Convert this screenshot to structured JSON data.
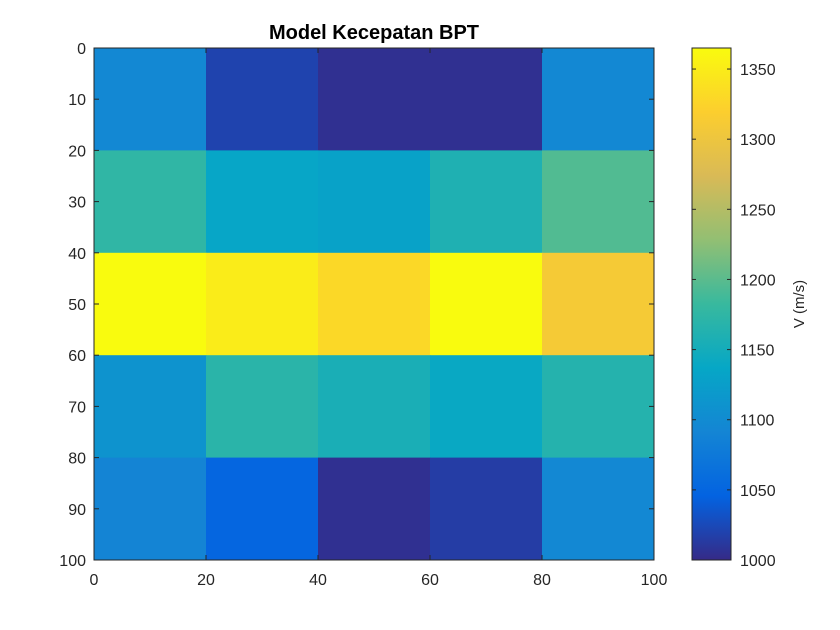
{
  "chart_data": {
    "type": "heatmap",
    "title": "Model Kecepatan BPT",
    "xlabel": "",
    "ylabel": "",
    "x_edges": [
      0,
      20,
      40,
      60,
      80,
      100
    ],
    "y_edges": [
      0,
      20,
      40,
      60,
      80,
      100
    ],
    "xlim": [
      0,
      100
    ],
    "ylim": [
      0,
      100
    ],
    "y_reversed": true,
    "x_ticks": [
      0,
      20,
      40,
      60,
      80,
      100
    ],
    "y_ticks": [
      0,
      10,
      20,
      30,
      40,
      50,
      60,
      70,
      80,
      90,
      100
    ],
    "values": [
      [
        1095,
        1020,
        1005,
        1005,
        1095
      ],
      [
        1175,
        1135,
        1130,
        1160,
        1195
      ],
      [
        1365,
        1350,
        1330,
        1365,
        1310
      ],
      [
        1110,
        1170,
        1155,
        1140,
        1165
      ],
      [
        1090,
        1050,
        1005,
        1015,
        1095
      ]
    ],
    "colorbar": {
      "label": "V (m/s)",
      "range": [
        1000,
        1365
      ],
      "ticks": [
        1000,
        1050,
        1100,
        1150,
        1200,
        1250,
        1300,
        1350
      ],
      "colormap": "parula"
    },
    "grid": false
  }
}
